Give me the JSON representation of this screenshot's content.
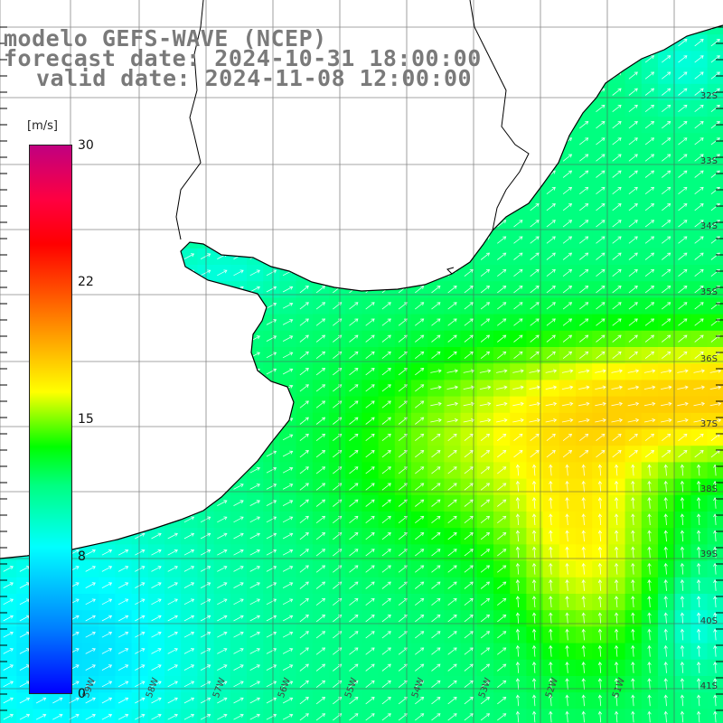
{
  "map": {
    "title_lines": [
      "modelo GEFS-WAVE (NCEP)",
      "forecast date: 2024-10-31 18:00:00",
      "valid date: 2024-11-08 12:00:00"
    ],
    "variable": "wind speed and direction",
    "lat_labels": [
      "32S",
      "33S",
      "34S",
      "35S",
      "36S",
      "37S",
      "38S",
      "39S",
      "40S",
      "41S"
    ],
    "lon_labels": [
      "59W",
      "58W",
      "57W",
      "56W",
      "55W",
      "54W",
      "53W",
      "52W",
      "51W"
    ]
  },
  "legend": {
    "unit": "[m/s]",
    "ticks": [
      "30",
      "22",
      "15",
      "8",
      "0"
    ],
    "colors": [
      "#0000ff",
      "#00ffff",
      "#00ff00",
      "#ffff00",
      "#ff0000",
      "#c00080"
    ]
  }
}
